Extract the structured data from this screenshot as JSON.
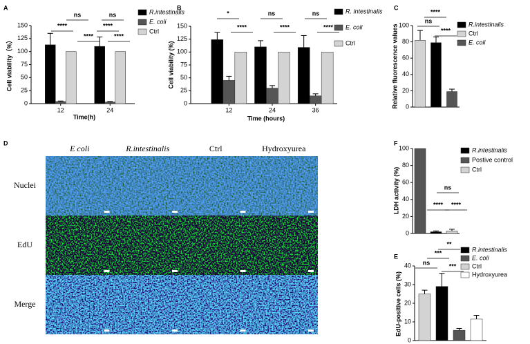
{
  "chart_data": [
    {
      "panel": "A",
      "type": "bar",
      "categories": [
        "12",
        "24"
      ],
      "x_label": "Time(h)",
      "y_label": "Cell viability（%）",
      "ylim": [
        0,
        150
      ],
      "yticks": [
        0,
        25,
        50,
        75,
        100,
        125,
        150
      ],
      "series": [
        {
          "name": "R.intestinalis",
          "color": "#000000",
          "values": [
            113,
            110
          ],
          "errors": [
            22,
            18
          ]
        },
        {
          "name": "E. coli",
          "color": "#555555",
          "values": [
            4,
            3
          ],
          "errors": [
            1,
            1
          ]
        },
        {
          "name": "Ctrl",
          "color": "#d3d3d3",
          "values": [
            100,
            100
          ]
        }
      ],
      "annotations": [
        "ns",
        "****",
        "****",
        "ns",
        "****",
        "****"
      ]
    },
    {
      "panel": "B",
      "type": "bar",
      "categories": [
        "12",
        "24",
        "36"
      ],
      "x_label": "Time (hours)",
      "y_label": "Cell viability (%)",
      "ylim": [
        0,
        150
      ],
      "yticks": [
        0,
        25,
        50,
        75,
        100,
        125,
        150
      ],
      "series": [
        {
          "name": "R. intestinalis",
          "color": "#000000",
          "values": [
            124,
            110,
            109
          ],
          "errors": [
            14,
            12,
            23
          ]
        },
        {
          "name": "E. coli",
          "color": "#555555",
          "values": [
            45,
            30,
            15
          ],
          "errors": [
            8,
            5,
            4
          ]
        },
        {
          "name": "Ctrl",
          "color": "#d3d3d3",
          "values": [
            100,
            100,
            100
          ]
        }
      ],
      "annotations": [
        "*",
        "****",
        "ns",
        "****",
        "ns",
        "****"
      ]
    },
    {
      "panel": "C",
      "type": "bar",
      "categories": [
        null
      ],
      "y_label": "Relative fluorescence values",
      "ylim": [
        0,
        100
      ],
      "yticks": [
        0,
        20,
        40,
        60,
        80,
        100
      ],
      "series": [
        {
          "name": "R.intestinalis",
          "color": "#000000",
          "values": [
            79
          ],
          "errors": [
            7
          ]
        },
        {
          "name": "Ctrl",
          "color": "#d3d3d3",
          "values": [
            82
          ],
          "errors": [
            12
          ]
        },
        {
          "name": "E. coli",
          "color": "#555555",
          "values": [
            19
          ],
          "errors": [
            3
          ]
        }
      ],
      "annotations": [
        "****",
        "ns",
        "****"
      ]
    },
    {
      "panel": "D",
      "type": "image-grid",
      "columns": [
        "E coli",
        "R.intestinalis",
        "Ctrl",
        "Hydroxyurea"
      ],
      "rows": [
        "Nuclei",
        "EdU",
        "Merge"
      ]
    },
    {
      "panel": "F",
      "type": "bar",
      "categories": [
        null
      ],
      "y_label": "LDH activity (%)",
      "ylim": [
        0,
        100
      ],
      "yticks": [
        0,
        20,
        40,
        60,
        80,
        100
      ],
      "series": [
        {
          "name": "R.intestinalis",
          "color": "#000000",
          "values": [
            2
          ],
          "errors": [
            1
          ]
        },
        {
          "name": "Postive control",
          "color": "#555555",
          "values": [
            100
          ]
        },
        {
          "name": "Ctrl",
          "color": "#d3d3d3",
          "values": [
            3
          ],
          "errors": [
            2
          ]
        }
      ],
      "annotations": [
        "ns",
        "****",
        "****"
      ]
    },
    {
      "panel": "E",
      "type": "bar",
      "categories": [
        null
      ],
      "y_label": "EdU-positive cells (%)",
      "ylim": [
        0,
        40
      ],
      "yticks": [
        0,
        10,
        20,
        30,
        40
      ],
      "series": [
        {
          "name": "R.intestinalis",
          "color": "#000000",
          "values": [
            29
          ],
          "errors": [
            7
          ]
        },
        {
          "name": "E. coli",
          "color": "#555555",
          "values": [
            5.5
          ],
          "errors": [
            1
          ]
        },
        {
          "name": "Ctrl",
          "color": "#d3d3d3",
          "values": [
            25
          ],
          "errors": [
            2
          ]
        },
        {
          "name": "Hydroxyurea",
          "color": "#ffffff",
          "values": [
            11.5
          ],
          "errors": [
            2
          ]
        }
      ],
      "annotations": [
        "**",
        "***",
        "ns",
        "***"
      ]
    }
  ]
}
